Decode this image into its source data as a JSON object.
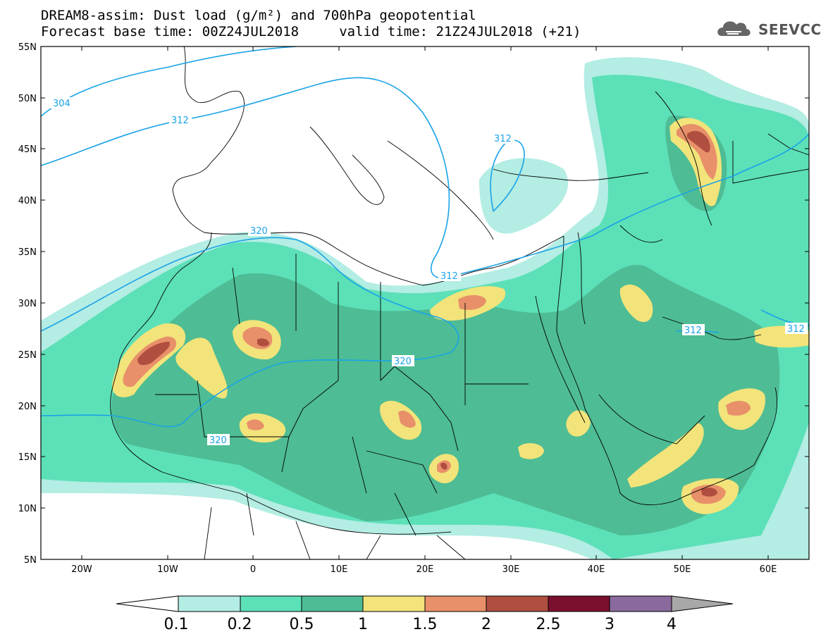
{
  "header": {
    "title_line1": "DREAM8-assim: Dust load (g/m²) and 700hPa geopotential",
    "title_line2": "Forecast base time: 00Z24JUL2018     valid time: 21Z24JUL2018 (+21)",
    "logo_text": "SEEVCCC",
    "logo_icon": "cloud-icon"
  },
  "map": {
    "lat_labels": [
      "55N",
      "50N",
      "45N",
      "40N",
      "35N",
      "30N",
      "25N",
      "20N",
      "15N",
      "10N",
      "5N"
    ],
    "lon_labels": [
      "20W",
      "10W",
      "0",
      "10E",
      "20E",
      "30E",
      "40E",
      "50E",
      "60E"
    ],
    "contour_labels": [
      "304",
      "312",
      "312",
      "320",
      "312",
      "320",
      "320",
      "312",
      "312"
    ]
  },
  "colorbar": {
    "levels": [
      "0.1",
      "0.2",
      "0.5",
      "1",
      "1.5",
      "2",
      "2.5",
      "3",
      "4"
    ],
    "colors": [
      "#ffffff",
      "#b3ede3",
      "#5ce0b8",
      "#4ebc94",
      "#f2e47a",
      "#e8906a",
      "#b04e40",
      "#7a0f2e",
      "#8a6a9c",
      "#a8a8a8"
    ]
  }
}
